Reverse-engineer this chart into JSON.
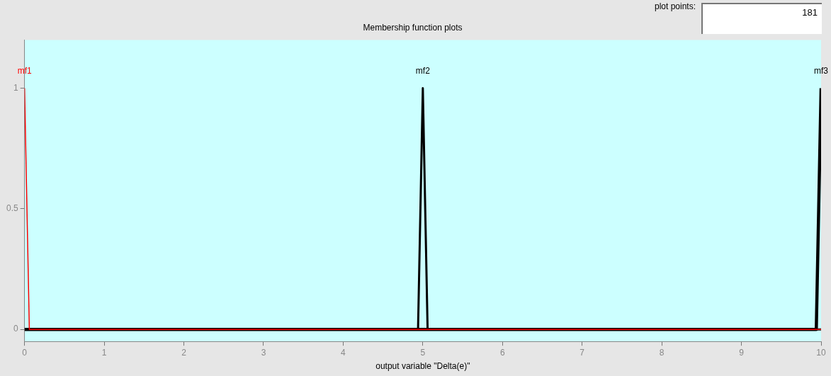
{
  "chart_data": {
    "type": "line",
    "title": "Membership function plots",
    "xlabel": "output variable \"Delta(e)\"",
    "series": [
      {
        "name": "mf1",
        "color": "#ff0000",
        "x": [
          0,
          0.06,
          10
        ],
        "values": [
          1,
          0,
          0
        ]
      },
      {
        "name": "mf2",
        "color": "#000000",
        "x": [
          0,
          4.94,
          5,
          5.06,
          10
        ],
        "values": [
          0,
          0,
          1,
          0,
          0
        ]
      },
      {
        "name": "mf3",
        "color": "#000000",
        "x": [
          0,
          9.94,
          10
        ],
        "values": [
          0,
          0,
          1
        ]
      }
    ],
    "xlim": [
      0,
      10
    ],
    "xticks": [
      0,
      1,
      2,
      3,
      4,
      5,
      6,
      7,
      8,
      9,
      10
    ],
    "ylim": [
      -0.05,
      1.2
    ],
    "yticks": [
      0,
      0.5,
      1
    ],
    "grid": false,
    "legend": false,
    "marker": "none",
    "line_style": "solid",
    "annotations": [
      "plot points:",
      "181"
    ]
  }
}
